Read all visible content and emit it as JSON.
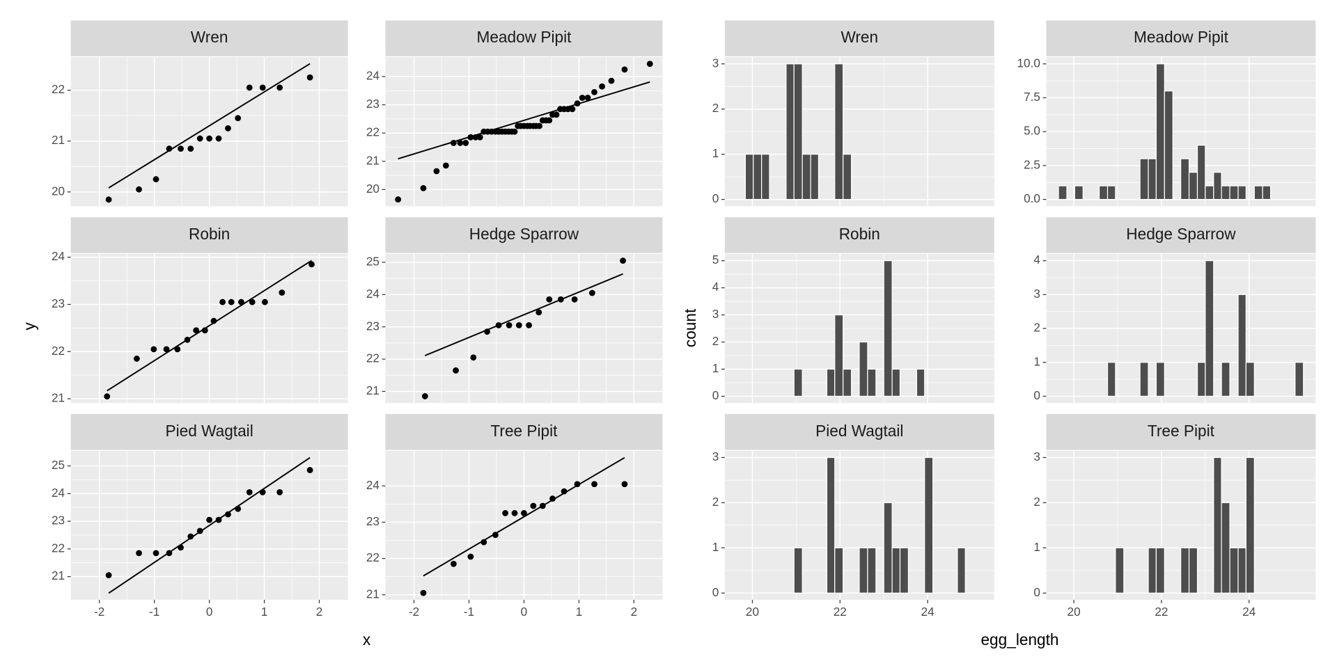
{
  "chart_data": [
    {
      "type": "qq",
      "x_label": "x",
      "y_label": "y",
      "xlim": [
        -2.52,
        2.52
      ],
      "xticks": [
        -2,
        -1,
        0,
        1,
        2
      ],
      "grid": true,
      "point_color": "#000000",
      "line_color": "#000000",
      "panels": [
        {
          "title": "Wren",
          "ylim": [
            19.72,
            22.65
          ],
          "yticks": [
            20,
            21,
            22
          ],
          "x": [
            -1.83,
            -1.28,
            -0.97,
            -0.73,
            -0.52,
            -0.34,
            -0.17,
            0,
            0.17,
            0.34,
            0.52,
            0.73,
            0.97,
            1.28,
            1.83
          ],
          "y": [
            19.85,
            20.05,
            20.25,
            20.85,
            20.85,
            20.85,
            21.05,
            21.05,
            21.05,
            21.25,
            21.45,
            22.05,
            22.05,
            22.05,
            22.25
          ],
          "line_x": [
            -1.83,
            1.83
          ],
          "line_y": [
            20.08,
            22.52
          ]
        },
        {
          "title": "Meadow Pipit",
          "ylim": [
            19.41,
            24.69
          ],
          "yticks": [
            20,
            21,
            22,
            23,
            24
          ],
          "x": [
            -2.29,
            -1.83,
            -1.59,
            -1.42,
            -1.28,
            -1.16,
            -1.06,
            -0.97,
            -0.88,
            -0.8,
            -0.73,
            -0.66,
            -0.59,
            -0.52,
            -0.46,
            -0.4,
            -0.34,
            -0.28,
            -0.22,
            -0.17,
            -0.11,
            -0.06,
            0,
            0.06,
            0.11,
            0.17,
            0.22,
            0.28,
            0.34,
            0.4,
            0.46,
            0.52,
            0.59,
            0.66,
            0.73,
            0.8,
            0.88,
            0.97,
            1.06,
            1.16,
            1.28,
            1.42,
            1.59,
            1.83,
            2.29
          ],
          "y": [
            19.65,
            20.05,
            20.65,
            20.85,
            21.65,
            21.65,
            21.65,
            21.85,
            21.85,
            21.85,
            22.05,
            22.05,
            22.05,
            22.05,
            22.05,
            22.05,
            22.05,
            22.05,
            22.05,
            22.05,
            22.25,
            22.25,
            22.25,
            22.25,
            22.25,
            22.25,
            22.25,
            22.25,
            22.45,
            22.45,
            22.45,
            22.65,
            22.65,
            22.85,
            22.85,
            22.85,
            22.85,
            23.05,
            23.25,
            23.25,
            23.45,
            23.65,
            23.85,
            24.25,
            24.45
          ],
          "line_x": [
            -2.29,
            2.29
          ],
          "line_y": [
            21.09,
            23.81
          ]
        },
        {
          "title": "Robin",
          "ylim": [
            20.91,
            24.07
          ],
          "yticks": [
            21,
            22,
            23,
            24
          ],
          "x": [
            -1.86,
            -1.32,
            -1.01,
            -0.78,
            -0.58,
            -0.4,
            -0.24,
            -0.08,
            0.08,
            0.24,
            0.4,
            0.58,
            0.78,
            1.01,
            1.32,
            1.86
          ],
          "y": [
            21.05,
            21.85,
            22.05,
            22.05,
            22.05,
            22.25,
            22.45,
            22.45,
            22.65,
            23.05,
            23.05,
            23.05,
            23.05,
            23.05,
            23.25,
            23.85
          ],
          "line_x": [
            -1.86,
            1.86
          ],
          "line_y": [
            21.17,
            23.93
          ]
        },
        {
          "title": "Hedge Sparrow",
          "ylim": [
            20.64,
            25.26
          ],
          "yticks": [
            21,
            22,
            23,
            24,
            25
          ],
          "x": [
            -1.8,
            -1.24,
            -0.92,
            -0.67,
            -0.46,
            -0.27,
            -0.09,
            0.09,
            0.27,
            0.46,
            0.67,
            0.92,
            1.24,
            1.8
          ],
          "y": [
            20.85,
            21.65,
            22.05,
            22.85,
            23.05,
            23.05,
            23.05,
            23.05,
            23.45,
            23.85,
            23.85,
            23.85,
            24.05,
            25.05
          ],
          "line_x": [
            -1.8,
            1.8
          ],
          "line_y": [
            22.11,
            24.64
          ]
        },
        {
          "title": "Pied Wagtail",
          "ylim": [
            20.16,
            25.55
          ],
          "yticks": [
            21,
            22,
            23,
            24,
            25
          ],
          "x": [
            -1.83,
            -1.28,
            -0.97,
            -0.73,
            -0.52,
            -0.34,
            -0.17,
            0,
            0.17,
            0.34,
            0.52,
            0.73,
            0.97,
            1.28,
            1.83
          ],
          "y": [
            21.05,
            21.85,
            21.85,
            21.85,
            22.05,
            22.45,
            22.65,
            23.05,
            23.05,
            23.25,
            23.45,
            24.05,
            24.05,
            24.05,
            24.85
          ],
          "line_x": [
            -1.83,
            1.83
          ],
          "line_y": [
            20.4,
            25.3
          ]
        },
        {
          "title": "Tree Pipit",
          "ylim": [
            20.86,
            24.97
          ],
          "yticks": [
            21,
            22,
            23,
            24
          ],
          "x": [
            -1.83,
            -1.28,
            -0.97,
            -0.73,
            -0.52,
            -0.34,
            -0.17,
            0,
            0.17,
            0.34,
            0.52,
            0.73,
            0.97,
            1.28,
            1.83
          ],
          "y": [
            21.05,
            21.85,
            22.05,
            22.45,
            22.65,
            23.25,
            23.25,
            23.25,
            23.45,
            23.45,
            23.65,
            23.85,
            24.05,
            24.05,
            24.05
          ],
          "line_x": [
            -1.83,
            1.83
          ],
          "line_y": [
            21.52,
            24.78
          ]
        }
      ]
    },
    {
      "type": "histogram",
      "x_label": "egg_length",
      "y_label": "count",
      "xlim": [
        19.37,
        25.52
      ],
      "xticks": [
        20,
        22,
        24
      ],
      "grid": true,
      "color": "#4d4d4d",
      "bins": [
        19.65,
        19.84,
        20.02,
        20.21,
        20.39,
        20.58,
        20.77,
        20.95,
        21.14,
        21.33,
        21.51,
        21.7,
        21.88,
        22.07,
        22.26,
        22.44,
        22.63,
        22.82,
        23.0,
        23.19,
        23.37,
        23.56,
        23.75,
        23.93,
        24.12,
        24.31,
        24.49,
        24.68,
        24.86,
        25.05,
        25.24
      ],
      "panels": [
        {
          "title": "Wren",
          "ylim": [
            -0.15,
            3.15
          ],
          "yticks": [
            0,
            1,
            2,
            3
          ],
          "counts": [
            0,
            1,
            1,
            1,
            0,
            0,
            3,
            3,
            1,
            1,
            0,
            0,
            3,
            1,
            0,
            0,
            0,
            0,
            0,
            0,
            0,
            0,
            0,
            0,
            0,
            0,
            0,
            0,
            0,
            0
          ]
        },
        {
          "title": "Meadow Pipit",
          "ylim": [
            -0.5,
            10.5
          ],
          "yticks": [
            {
              "value": 0,
              "label": "0.0"
            },
            {
              "value": 2.5,
              "label": "2.5"
            },
            {
              "value": 5,
              "label": "5.0"
            },
            {
              "value": 7.5,
              "label": "7.5"
            },
            {
              "value": 10,
              "label": "10.0"
            }
          ],
          "counts": [
            1,
            0,
            1,
            0,
            0,
            1,
            1,
            0,
            0,
            0,
            3,
            3,
            10,
            8,
            0,
            3,
            2,
            4,
            1,
            2,
            1,
            1,
            1,
            0,
            1,
            1,
            0,
            0,
            0,
            0
          ]
        },
        {
          "title": "Robin",
          "ylim": [
            -0.25,
            5.25
          ],
          "yticks": [
            0,
            1,
            2,
            3,
            4,
            5
          ],
          "counts": [
            0,
            0,
            0,
            0,
            0,
            0,
            0,
            1,
            0,
            0,
            0,
            1,
            3,
            1,
            0,
            2,
            1,
            0,
            5,
            1,
            0,
            0,
            1,
            0,
            0,
            0,
            0,
            0,
            0,
            0
          ]
        },
        {
          "title": "Hedge Sparrow",
          "ylim": [
            -0.2,
            4.2
          ],
          "yticks": [
            0,
            1,
            2,
            3,
            4
          ],
          "counts": [
            0,
            0,
            0,
            0,
            0,
            0,
            1,
            0,
            0,
            0,
            1,
            0,
            1,
            0,
            0,
            0,
            0,
            1,
            4,
            0,
            1,
            0,
            3,
            1,
            0,
            0,
            0,
            0,
            0,
            1
          ]
        },
        {
          "title": "Pied Wagtail",
          "ylim": [
            -0.15,
            3.15
          ],
          "yticks": [
            0,
            1,
            2,
            3
          ],
          "counts": [
            0,
            0,
            0,
            0,
            0,
            0,
            0,
            1,
            0,
            0,
            0,
            3,
            1,
            0,
            0,
            1,
            1,
            0,
            2,
            1,
            1,
            0,
            0,
            3,
            0,
            0,
            0,
            1,
            0,
            0
          ]
        },
        {
          "title": "Tree Pipit",
          "ylim": [
            -0.15,
            3.15
          ],
          "yticks": [
            0,
            1,
            2,
            3
          ],
          "counts": [
            0,
            0,
            0,
            0,
            0,
            0,
            0,
            1,
            0,
            0,
            0,
            1,
            1,
            0,
            0,
            1,
            1,
            0,
            0,
            3,
            2,
            1,
            1,
            3,
            0,
            0,
            0,
            0,
            0,
            0
          ]
        }
      ]
    }
  ]
}
